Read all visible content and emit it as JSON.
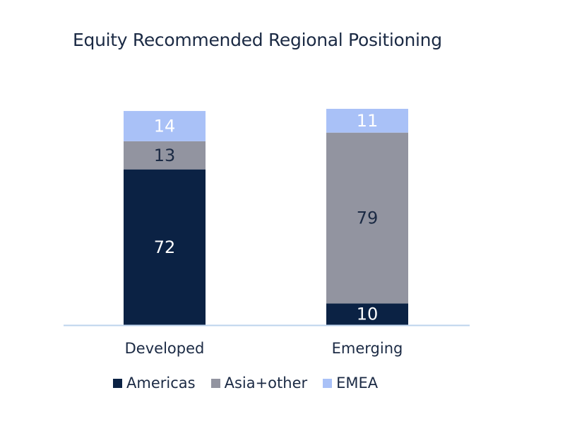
{
  "chart_data": {
    "type": "bar",
    "stacked": true,
    "title": "Equity Recommended Regional Positioning",
    "categories": [
      "Developed",
      "Emerging"
    ],
    "series": [
      {
        "name": "Americas",
        "values": [
          72,
          10
        ],
        "color": "#0b2244",
        "label_color": "#ffffff"
      },
      {
        "name": "Asia+other",
        "values": [
          13,
          79
        ],
        "color": "#9294a0",
        "label_color": "#1b2a44"
      },
      {
        "name": "EMEA",
        "values": [
          14,
          11
        ],
        "color": "#a9c1f7",
        "label_color": "#ffffff"
      }
    ],
    "ylim": [
      0,
      100
    ],
    "grid": false,
    "legend_position": "bottom",
    "axis_color": "#bcd3ec"
  }
}
